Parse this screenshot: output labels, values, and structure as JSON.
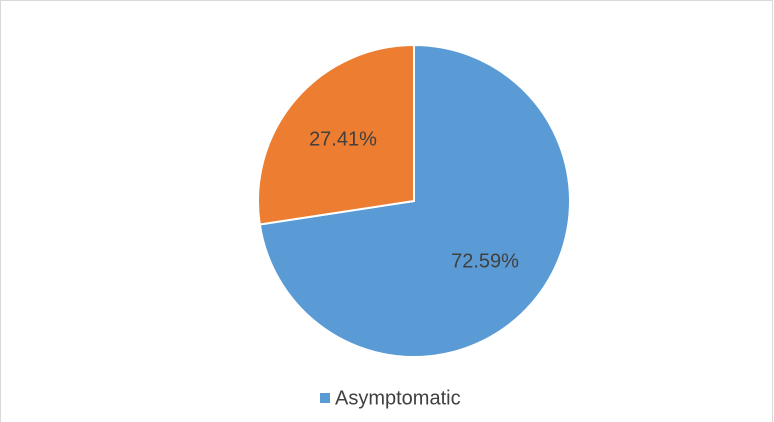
{
  "chart_data": {
    "type": "pie",
    "categories": [
      "Asymptomatic",
      null
    ],
    "values": [
      72.59,
      27.41
    ],
    "value_labels": [
      "72.59%",
      "27.41%"
    ],
    "colors": [
      "#5b9bd5",
      "#ed7d31"
    ],
    "legend": "bottom"
  }
}
